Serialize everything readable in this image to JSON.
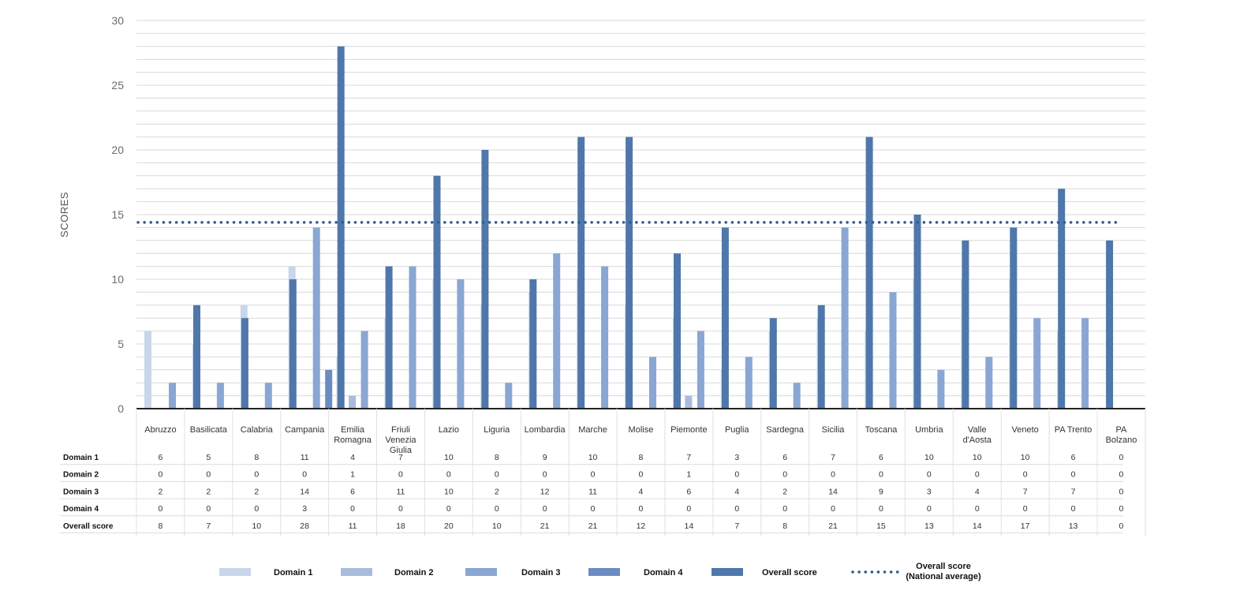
{
  "colors": {
    "domain1": "#c9d6ea",
    "domain2": "#a9bcdb",
    "domain3": "#8aa6d2",
    "domain4": "#6b8cc2",
    "overall": "#4f77aa",
    "avg_line": "#2f5b8c",
    "grid": "#d9d9d9"
  },
  "chart_data": {
    "type": "bar",
    "title": "",
    "xlabel": "",
    "ylabel": "SCORES",
    "ylim": [
      0,
      30
    ],
    "yticks": [
      0,
      5,
      10,
      15,
      20,
      25,
      30
    ],
    "grid": "horizontal",
    "legend_position": "bottom",
    "categories": [
      [
        "Abruzzo"
      ],
      [
        "Basilicata"
      ],
      [
        "Calabria"
      ],
      [
        "Campania"
      ],
      [
        "Emilia",
        "Romagna"
      ],
      [
        "Friuli",
        "Venezia",
        "Giulia"
      ],
      [
        "Lazio"
      ],
      [
        "Liguria"
      ],
      [
        "Lombardia"
      ],
      [
        "Marche"
      ],
      [
        "Molise"
      ],
      [
        "Piemonte"
      ],
      [
        "Puglia"
      ],
      [
        "Sardegna"
      ],
      [
        "Sicilia"
      ],
      [
        "Toscana"
      ],
      [
        "Umbria"
      ],
      [
        "Valle",
        "d'Aosta"
      ],
      [
        "Veneto"
      ],
      [
        "PA Trento"
      ],
      [
        "PA",
        "Bolzano"
      ]
    ],
    "series": [
      {
        "name": "Domain 1",
        "color_key": "domain1",
        "values": [
          6,
          5,
          8,
          11,
          4,
          7,
          10,
          8,
          9,
          10,
          8,
          7,
          3,
          6,
          7,
          6,
          10,
          10,
          10,
          6,
          0
        ]
      },
      {
        "name": "Domain 2",
        "color_key": "domain2",
        "values": [
          0,
          0,
          0,
          0,
          1,
          0,
          0,
          0,
          0,
          0,
          0,
          1,
          0,
          0,
          0,
          0,
          0,
          0,
          0,
          0,
          0
        ]
      },
      {
        "name": "Domain 3",
        "color_key": "domain3",
        "values": [
          2,
          2,
          2,
          14,
          6,
          11,
          10,
          2,
          12,
          11,
          4,
          6,
          4,
          2,
          14,
          9,
          3,
          4,
          7,
          7,
          0
        ]
      },
      {
        "name": "Domain 4",
        "color_key": "domain4",
        "values": [
          0,
          0,
          0,
          3,
          0,
          0,
          0,
          0,
          0,
          0,
          0,
          0,
          0,
          0,
          0,
          0,
          0,
          0,
          0,
          0,
          0
        ]
      },
      {
        "name": "Overall score",
        "color_key": "overall",
        "values": [
          8,
          7,
          10,
          28,
          11,
          18,
          20,
          10,
          21,
          21,
          12,
          14,
          7,
          8,
          21,
          15,
          13,
          14,
          17,
          13,
          0
        ]
      }
    ],
    "reference_line": {
      "name": [
        "Overall score",
        "(National average)"
      ],
      "value": 14.4,
      "style": "dotted"
    },
    "table": {
      "rows": [
        {
          "label": "Domain 1",
          "values": [
            "6",
            "5",
            "8",
            "11",
            "4",
            "7",
            "10",
            "8",
            "9",
            "10",
            "8",
            "7",
            "3",
            "6",
            "7",
            "6",
            "10",
            "10",
            "10",
            "6",
            "0"
          ]
        },
        {
          "label": "Domain 2",
          "values": [
            "0",
            "0",
            "0",
            "0",
            "1",
            "0",
            "0",
            "0",
            "0",
            "0",
            "0",
            "1",
            "0",
            "0",
            "0",
            "0",
            "0",
            "0",
            "0",
            "0",
            "0"
          ]
        },
        {
          "label": "Domain 3",
          "values": [
            "2",
            "2",
            "2",
            "14",
            "6",
            "11",
            "10",
            "2",
            "12",
            "11",
            "4",
            "6",
            "4",
            "2",
            "14",
            "9",
            "3",
            "4",
            "7",
            "7",
            "0"
          ]
        },
        {
          "label": "Domain 4",
          "values": [
            "0",
            "0",
            "0",
            "3",
            "0",
            "0",
            "0",
            "0",
            "0",
            "0",
            "0",
            "0",
            "0",
            "0",
            "0",
            "0",
            "0",
            "0",
            "0",
            "0",
            "0"
          ]
        },
        {
          "label": "Overall score",
          "values": [
            "8",
            "7",
            "10",
            "28",
            "11",
            "18",
            "20",
            "10",
            "21",
            "21",
            "12",
            "14",
            "7",
            "8",
            "21",
            "15",
            "13",
            "14",
            "17",
            "13",
            "0"
          ]
        }
      ]
    }
  }
}
